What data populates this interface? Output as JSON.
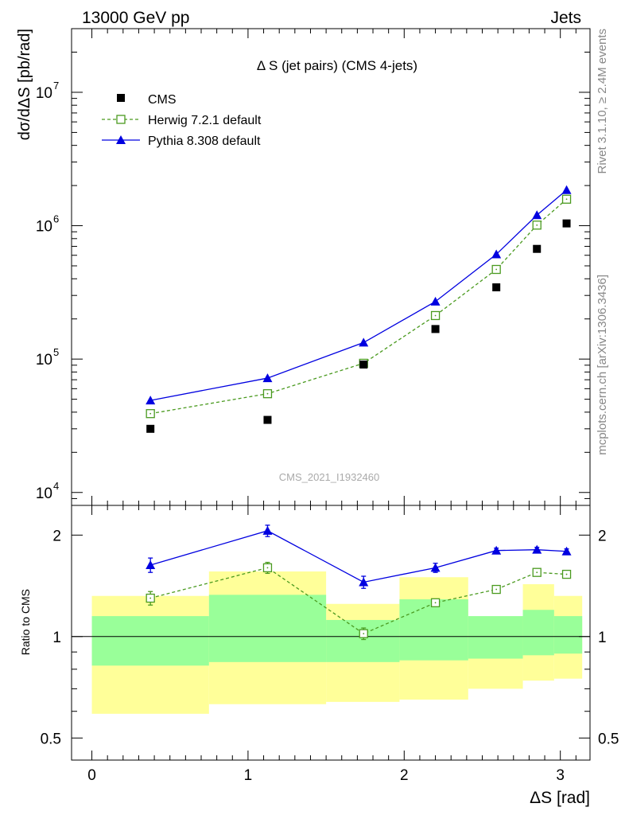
{
  "header": {
    "left": "13000 GeV pp",
    "right": "Jets"
  },
  "side_labels": {
    "rivet": "Rivet 3.1.10, ≥ 2.4M events",
    "source": "mcplots.cern.ch [arXiv:1306.3436]"
  },
  "chart_data": {
    "type": "line",
    "title": "Δ S (jet pairs) (CMS 4-jets)",
    "watermark": "CMS_2021_I1932460",
    "xlabel": "ΔS [rad]",
    "ylabel": "dσ/dΔS [pb/rad]",
    "ratio_ylabel": "Ratio to CMS",
    "xlim": [
      -0.13,
      3.19
    ],
    "ylim": [
      8000,
      30000000
    ],
    "yscale": "log",
    "ratio_ylim": [
      0.43,
      2.45
    ],
    "ratio_yscale": "log",
    "x_ticks": [
      "0",
      "1",
      "2",
      "3"
    ],
    "main_y_ticks": [
      {
        "base": "10",
        "exp": "4"
      },
      {
        "base": "10",
        "exp": "5"
      },
      {
        "base": "10",
        "exp": "6"
      },
      {
        "base": "10",
        "exp": "7"
      }
    ],
    "ratio_y_ticks": [
      "0.5",
      "1",
      "2"
    ],
    "x": [
      0.375,
      1.125,
      1.74,
      2.2,
      2.59,
      2.85,
      3.04
    ],
    "bin_edges": [
      0,
      0.75,
      1.5,
      1.97,
      2.41,
      2.76,
      2.96,
      3.14
    ],
    "series": [
      {
        "name": "CMS",
        "color": "#000000",
        "marker": "square-filled",
        "values": [
          30000,
          35000,
          91000,
          168000,
          345000,
          670000,
          1040000
        ]
      },
      {
        "name": "Herwig 7.2.1 default",
        "color": "#4a9a1f",
        "marker": "square-open",
        "line": "dashed",
        "values": [
          39000,
          55000,
          93000,
          212000,
          470000,
          1010000,
          1580000
        ],
        "ratio": [
          1.3,
          1.6,
          1.02,
          1.26,
          1.38,
          1.55,
          1.53
        ],
        "ratio_err": [
          0.06,
          0.06,
          0.04,
          0.03,
          0.03,
          0.03,
          0.03
        ]
      },
      {
        "name": "Pythia 8.308 default",
        "color": "#0000e0",
        "marker": "triangle-filled",
        "line": "solid",
        "values": [
          49000,
          72000,
          133000,
          270000,
          610000,
          1200000,
          1850000
        ],
        "ratio": [
          1.63,
          2.06,
          1.45,
          1.6,
          1.8,
          1.81,
          1.79
        ],
        "ratio_err": [
          0.08,
          0.08,
          0.06,
          0.05,
          0.03,
          0.03,
          0.03
        ]
      }
    ],
    "uncertainty_bands": {
      "yellow_color": "#ffff99",
      "green_color": "#99ff99",
      "yellow": [
        {
          "lo": 0.59,
          "hi": 1.32
        },
        {
          "lo": 0.63,
          "hi": 1.56
        },
        {
          "lo": 0.64,
          "hi": 1.25
        },
        {
          "lo": 0.65,
          "hi": 1.5
        },
        {
          "lo": 0.7,
          "hi": 1.13
        },
        {
          "lo": 0.74,
          "hi": 1.43
        },
        {
          "lo": 0.75,
          "hi": 1.32
        }
      ],
      "green": [
        {
          "lo": 0.82,
          "hi": 1.15
        },
        {
          "lo": 0.84,
          "hi": 1.33
        },
        {
          "lo": 0.84,
          "hi": 1.12
        },
        {
          "lo": 0.85,
          "hi": 1.29
        },
        {
          "lo": 0.86,
          "hi": 1.15
        },
        {
          "lo": 0.88,
          "hi": 1.2
        },
        {
          "lo": 0.89,
          "hi": 1.15
        }
      ]
    },
    "legend_position": "top-left",
    "grid": false
  }
}
